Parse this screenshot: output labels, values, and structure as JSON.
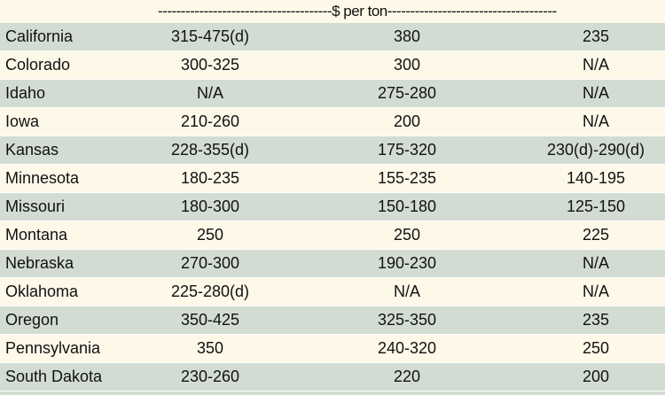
{
  "chart_data": {
    "type": "table",
    "header": "--------------------------------------$ per ton-------------------------------------",
    "rows": [
      {
        "state": "California",
        "c1": "315-475(d)",
        "c2": "380",
        "c3": "235"
      },
      {
        "state": "Colorado",
        "c1": "300-325",
        "c2": "300",
        "c3": "N/A"
      },
      {
        "state": "Idaho",
        "c1": "N/A",
        "c2": "275-280",
        "c3": "N/A"
      },
      {
        "state": "Iowa",
        "c1": "210-260",
        "c2": "200",
        "c3": "N/A"
      },
      {
        "state": "Kansas",
        "c1": "228-355(d)",
        "c2": "175-320",
        "c3": "230(d)-290(d)"
      },
      {
        "state": "Minnesota",
        "c1": "180-235",
        "c2": "155-235",
        "c3": "140-195"
      },
      {
        "state": "Missouri",
        "c1": "180-300",
        "c2": "150-180",
        "c3": "125-150"
      },
      {
        "state": "Montana",
        "c1": "250",
        "c2": "250",
        "c3": "225"
      },
      {
        "state": "Nebraska",
        "c1": "270-300",
        "c2": "190-230",
        "c3": "N/A"
      },
      {
        "state": "Oklahoma",
        "c1": "225-280(d)",
        "c2": "N/A",
        "c3": "N/A"
      },
      {
        "state": "Oregon",
        "c1": "350-425",
        "c2": "325-350",
        "c3": "235"
      },
      {
        "state": "Pennsylvania",
        "c1": "350",
        "c2": "240-320",
        "c3": "250"
      },
      {
        "state": "South Dakota",
        "c1": "230-260",
        "c2": "220",
        "c3": "200"
      }
    ],
    "colors": {
      "shaded": "#d3dcd3",
      "plain": "#fdf8e8"
    }
  }
}
